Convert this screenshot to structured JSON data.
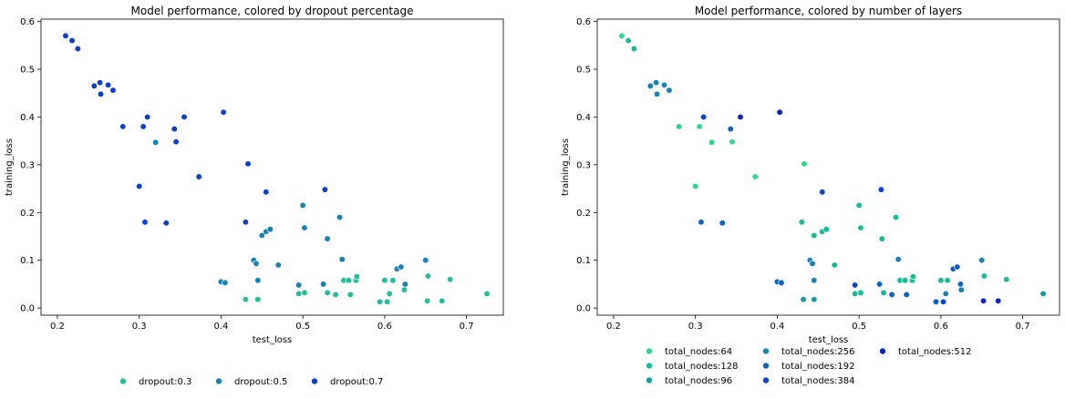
{
  "chart_data": [
    {
      "type": "scatter",
      "title": "Model performance, colored by dropout percentage",
      "xlabel": "test_loss",
      "ylabel": "training_loss",
      "xlim": [
        0.18,
        0.745
      ],
      "ylim": [
        -0.015,
        0.605
      ],
      "xticks": [
        0.2,
        0.3,
        0.4,
        0.5,
        0.6,
        0.7
      ],
      "yticks": [
        0.0,
        0.1,
        0.2,
        0.3,
        0.4,
        0.5,
        0.6
      ],
      "xtick_labels": [
        "0.2",
        "0.3",
        "0.4",
        "0.5",
        "0.6",
        "0.7"
      ],
      "ytick_labels": [
        "0.0",
        "0.1",
        "0.2",
        "0.3",
        "0.4",
        "0.5",
        "0.6"
      ],
      "grid": false,
      "legend_position": "below",
      "series": [
        {
          "name": "dropout:0.3",
          "color": "#1fbf9a",
          "points": [
            [
              0.43,
              0.018
            ],
            [
              0.445,
              0.018
            ],
            [
              0.495,
              0.03
            ],
            [
              0.502,
              0.032
            ],
            [
              0.53,
              0.032
            ],
            [
              0.54,
              0.028
            ],
            [
              0.55,
              0.058
            ],
            [
              0.556,
              0.058
            ],
            [
              0.558,
              0.028
            ],
            [
              0.565,
              0.058
            ],
            [
              0.566,
              0.066
            ],
            [
              0.594,
              0.013
            ],
            [
              0.6,
              0.058
            ],
            [
              0.603,
              0.013
            ],
            [
              0.606,
              0.03
            ],
            [
              0.61,
              0.058
            ],
            [
              0.624,
              0.038
            ],
            [
              0.652,
              0.015
            ],
            [
              0.653,
              0.067
            ],
            [
              0.67,
              0.015
            ],
            [
              0.68,
              0.06
            ],
            [
              0.725,
              0.03
            ]
          ]
        },
        {
          "name": "dropout:0.5",
          "color": "#1282b9",
          "points": [
            [
              0.4,
              0.055
            ],
            [
              0.405,
              0.053
            ],
            [
              0.44,
              0.1
            ],
            [
              0.443,
              0.093
            ],
            [
              0.445,
              0.058
            ],
            [
              0.45,
              0.152
            ],
            [
              0.455,
              0.16
            ],
            [
              0.46,
              0.165
            ],
            [
              0.47,
              0.09
            ],
            [
              0.495,
              0.048
            ],
            [
              0.5,
              0.215
            ],
            [
              0.502,
              0.168
            ],
            [
              0.525,
              0.05
            ],
            [
              0.53,
              0.145
            ],
            [
              0.545,
              0.19
            ],
            [
              0.548,
              0.102
            ],
            [
              0.615,
              0.082
            ],
            [
              0.62,
              0.086
            ],
            [
              0.625,
              0.05
            ],
            [
              0.65,
              0.1
            ],
            [
              0.32,
              0.347
            ]
          ]
        },
        {
          "name": "dropout:0.7",
          "color": "#0a3fcf",
          "points": [
            [
              0.21,
              0.57
            ],
            [
              0.218,
              0.56
            ],
            [
              0.225,
              0.543
            ],
            [
              0.245,
              0.465
            ],
            [
              0.252,
              0.472
            ],
            [
              0.253,
              0.448
            ],
            [
              0.262,
              0.467
            ],
            [
              0.268,
              0.456
            ],
            [
              0.28,
              0.38
            ],
            [
              0.3,
              0.255
            ],
            [
              0.305,
              0.38
            ],
            [
              0.307,
              0.18
            ],
            [
              0.31,
              0.4
            ],
            [
              0.333,
              0.178
            ],
            [
              0.343,
              0.375
            ],
            [
              0.345,
              0.348
            ],
            [
              0.355,
              0.4
            ],
            [
              0.373,
              0.275
            ],
            [
              0.403,
              0.41
            ],
            [
              0.43,
              0.18
            ],
            [
              0.433,
              0.302
            ],
            [
              0.455,
              0.243
            ],
            [
              0.527,
              0.248
            ]
          ]
        }
      ]
    },
    {
      "type": "scatter",
      "title": "Model performance, colored by number of layers",
      "xlabel": "test_loss",
      "ylabel": "training_loss",
      "xlim": [
        0.18,
        0.745
      ],
      "ylim": [
        -0.015,
        0.605
      ],
      "xticks": [
        0.2,
        0.3,
        0.4,
        0.5,
        0.6,
        0.7
      ],
      "yticks": [
        0.0,
        0.1,
        0.2,
        0.3,
        0.4,
        0.5,
        0.6
      ],
      "xtick_labels": [
        "0.2",
        "0.3",
        "0.4",
        "0.5",
        "0.6",
        "0.7"
      ],
      "ytick_labels": [
        "0.0",
        "0.1",
        "0.2",
        "0.3",
        "0.4",
        "0.5",
        "0.6"
      ],
      "grid": false,
      "legend_position": "below",
      "series": [
        {
          "name": "total_nodes:64",
          "color": "#2ad88a",
          "points": [
            [
              0.21,
              0.57
            ],
            [
              0.28,
              0.38
            ],
            [
              0.3,
              0.255
            ],
            [
              0.305,
              0.38
            ],
            [
              0.32,
              0.347
            ],
            [
              0.345,
              0.348
            ],
            [
              0.373,
              0.275
            ],
            [
              0.433,
              0.302
            ]
          ]
        },
        {
          "name": "total_nodes:128",
          "color": "#14bd96",
          "points": [
            [
              0.218,
              0.56
            ],
            [
              0.225,
              0.543
            ],
            [
              0.43,
              0.18
            ],
            [
              0.445,
              0.152
            ],
            [
              0.455,
              0.16
            ],
            [
              0.46,
              0.165
            ],
            [
              0.47,
              0.09
            ],
            [
              0.495,
              0.03
            ],
            [
              0.502,
              0.032
            ],
            [
              0.5,
              0.215
            ],
            [
              0.502,
              0.168
            ],
            [
              0.528,
              0.145
            ],
            [
              0.53,
              0.032
            ],
            [
              0.545,
              0.19
            ],
            [
              0.55,
              0.058
            ],
            [
              0.556,
              0.058
            ],
            [
              0.565,
              0.058
            ],
            [
              0.566,
              0.066
            ],
            [
              0.6,
              0.058
            ],
            [
              0.608,
              0.058
            ],
            [
              0.653,
              0.067
            ],
            [
              0.68,
              0.06
            ]
          ]
        },
        {
          "name": "total_nodes:96",
          "color": "#139fa6",
          "points": [
            [
              0.432,
              0.018
            ],
            [
              0.445,
              0.018
            ],
            [
              0.725,
              0.03
            ]
          ]
        },
        {
          "name": "total_nodes:256",
          "color": "#1282b9",
          "points": [
            [
              0.245,
              0.465
            ],
            [
              0.252,
              0.472
            ],
            [
              0.253,
              0.448
            ],
            [
              0.262,
              0.467
            ],
            [
              0.268,
              0.456
            ],
            [
              0.44,
              0.1
            ],
            [
              0.443,
              0.093
            ],
            [
              0.445,
              0.058
            ],
            [
              0.548,
              0.102
            ],
            [
              0.606,
              0.03
            ],
            [
              0.625,
              0.038
            ],
            [
              0.65,
              0.1
            ]
          ]
        },
        {
          "name": "total_nodes:192",
          "color": "#0c61c9",
          "points": [
            [
              0.307,
              0.18
            ],
            [
              0.333,
              0.178
            ],
            [
              0.343,
              0.375
            ],
            [
              0.4,
              0.055
            ],
            [
              0.405,
              0.053
            ],
            [
              0.525,
              0.05
            ],
            [
              0.54,
              0.028
            ],
            [
              0.558,
              0.028
            ],
            [
              0.594,
              0.013
            ],
            [
              0.615,
              0.082
            ],
            [
              0.62,
              0.086
            ],
            [
              0.624,
              0.05
            ]
          ]
        },
        {
          "name": "total_nodes:384",
          "color": "#0a43d2",
          "points": [
            [
              0.31,
              0.4
            ],
            [
              0.455,
              0.243
            ],
            [
              0.495,
              0.048
            ],
            [
              0.527,
              0.248
            ],
            [
              0.603,
              0.013
            ]
          ]
        },
        {
          "name": "total_nodes:512",
          "color": "#0a22c7",
          "points": [
            [
              0.355,
              0.4
            ],
            [
              0.403,
              0.41
            ],
            [
              0.652,
              0.015
            ],
            [
              0.67,
              0.015
            ]
          ]
        }
      ]
    }
  ]
}
